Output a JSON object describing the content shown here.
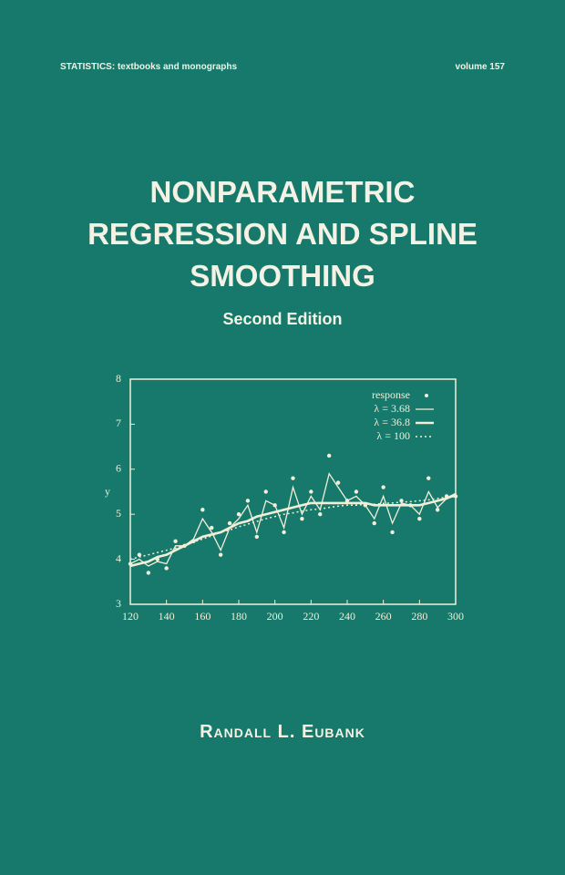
{
  "series_label": "STATISTICS:  textbooks and monographs",
  "volume": "volume 157",
  "title_lines": [
    "NONPARAMETRIC",
    "REGRESSION AND SPLINE",
    "SMOOTHING"
  ],
  "edition": "Second Edition",
  "author": "Randall L. Eubank",
  "chart_data": {
    "type": "line",
    "ylabel": "y",
    "x": [
      120,
      125,
      130,
      135,
      140,
      145,
      150,
      155,
      160,
      165,
      170,
      175,
      180,
      185,
      190,
      195,
      200,
      205,
      210,
      215,
      220,
      225,
      230,
      235,
      240,
      245,
      250,
      255,
      260,
      265,
      270,
      275,
      280,
      285,
      290,
      295,
      300
    ],
    "series": [
      {
        "name": "response",
        "color": "#f2efd8",
        "style": "points",
        "values": [
          3.9,
          4.1,
          3.7,
          4.0,
          3.8,
          4.4,
          4.3,
          4.4,
          5.1,
          4.7,
          4.1,
          4.8,
          5.0,
          5.3,
          4.5,
          5.5,
          5.2,
          4.6,
          5.8,
          4.9,
          5.5,
          5.0,
          6.3,
          5.7,
          5.3,
          5.5,
          5.2,
          4.8,
          5.6,
          4.6,
          5.3,
          5.2,
          4.9,
          5.8,
          5.1,
          5.4,
          5.4
        ]
      },
      {
        "name": "λ = 3.68",
        "color": "#f2efd8",
        "style": "solid",
        "values": [
          3.9,
          4.0,
          3.85,
          3.95,
          3.9,
          4.3,
          4.3,
          4.45,
          4.9,
          4.6,
          4.2,
          4.7,
          4.9,
          5.2,
          4.6,
          5.3,
          5.2,
          4.7,
          5.6,
          5.0,
          5.4,
          5.1,
          5.9,
          5.6,
          5.3,
          5.4,
          5.2,
          4.9,
          5.4,
          4.8,
          5.25,
          5.2,
          5.0,
          5.5,
          5.15,
          5.35,
          5.4
        ]
      },
      {
        "name": "λ = 36.8",
        "color": "#f2efd8",
        "style": "thick",
        "values": [
          3.85,
          3.9,
          3.95,
          4.05,
          4.1,
          4.2,
          4.3,
          4.4,
          4.5,
          4.55,
          4.6,
          4.7,
          4.8,
          4.85,
          4.95,
          5.0,
          5.05,
          5.1,
          5.15,
          5.2,
          5.25,
          5.25,
          5.25,
          5.25,
          5.25,
          5.25,
          5.25,
          5.2,
          5.2,
          5.2,
          5.2,
          5.2,
          5.2,
          5.25,
          5.3,
          5.35,
          5.45
        ]
      },
      {
        "name": "λ = 100",
        "color": "#f2efd8",
        "style": "dotted",
        "values": [
          4.0,
          4.05,
          4.1,
          4.15,
          4.2,
          4.25,
          4.3,
          4.38,
          4.45,
          4.52,
          4.6,
          4.65,
          4.72,
          4.78,
          4.84,
          4.9,
          4.95,
          5.0,
          5.03,
          5.07,
          5.1,
          5.12,
          5.15,
          5.18,
          5.2,
          5.2,
          5.22,
          5.22,
          5.24,
          5.25,
          5.27,
          5.28,
          5.3,
          5.32,
          5.35,
          5.38,
          5.4
        ]
      }
    ],
    "xlim": [
      120,
      300
    ],
    "ylim": [
      3,
      8
    ],
    "xticks": [
      120,
      140,
      160,
      180,
      200,
      220,
      240,
      260,
      280,
      300
    ],
    "yticks": [
      3,
      4,
      5,
      6,
      7,
      8
    ],
    "legend": "upper right"
  }
}
